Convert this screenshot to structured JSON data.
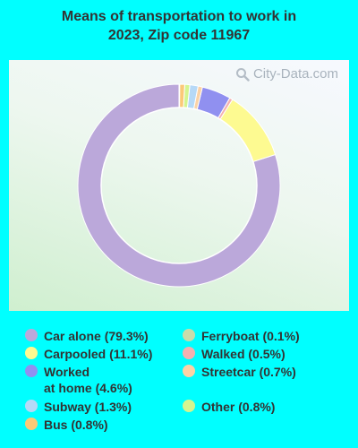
{
  "title": {
    "line1": "Means of transportation to work in",
    "line2": "2023, Zip code 11967"
  },
  "watermark": "City-Data.com",
  "colors": {
    "background": "#00ffff"
  },
  "chart_data": {
    "type": "pie",
    "donut": true,
    "categories": [
      "Car alone",
      "Carpooled",
      "Walked",
      "Worked at home",
      "Streetcar",
      "Subway",
      "Other",
      "Bus",
      "Ferryboat"
    ],
    "values": [
      79.3,
      11.1,
      0.5,
      4.6,
      0.7,
      1.3,
      0.8,
      0.8,
      0.1
    ],
    "colors": [
      "#bba8da",
      "#fdfa91",
      "#f4b1b0",
      "#9090f0",
      "#fbd2a6",
      "#b6d9f7",
      "#d4f58f",
      "#fbc977",
      "#c8dcab"
    ]
  },
  "legend": {
    "items": [
      {
        "label": "Car alone (79.3%)",
        "color": "#bba8da"
      },
      {
        "label": "Carpooled (11.1%)",
        "color": "#fdfa91"
      },
      {
        "label": "Worked\nat home (4.6%)",
        "color": "#9090f0"
      },
      {
        "label": "Subway (1.3%)",
        "color": "#b6d9f7"
      },
      {
        "label": "Bus (0.8%)",
        "color": "#fbc977"
      },
      {
        "label": "Ferryboat (0.1%)",
        "color": "#c8dcab"
      },
      {
        "label": "Walked (0.5%)",
        "color": "#f4b1b0"
      },
      {
        "label": "Streetcar (0.7%)",
        "color": "#fbd2a6"
      },
      {
        "label": "Other (0.8%)",
        "color": "#d4f58f"
      }
    ]
  }
}
